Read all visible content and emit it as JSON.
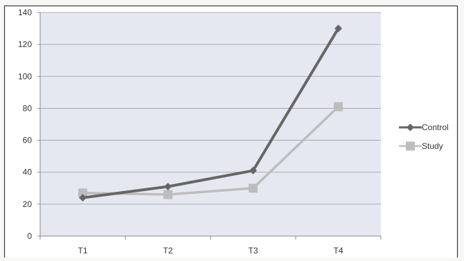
{
  "chart_data": {
    "type": "line",
    "categories": [
      "T1",
      "T2",
      "T3",
      "T4"
    ],
    "series": [
      {
        "name": "Control",
        "values": [
          24,
          31,
          41,
          130
        ],
        "color": "#666666",
        "marker": "diamond"
      },
      {
        "name": "Study",
        "values": [
          27,
          26,
          30,
          81
        ],
        "color": "#bdbdbd",
        "marker": "square"
      }
    ],
    "ylim": [
      0,
      140
    ],
    "yticks": [
      0,
      20,
      40,
      60,
      80,
      100,
      120,
      140
    ],
    "grid": true,
    "legend": "right",
    "title": "",
    "xlabel": "",
    "ylabel": ""
  }
}
